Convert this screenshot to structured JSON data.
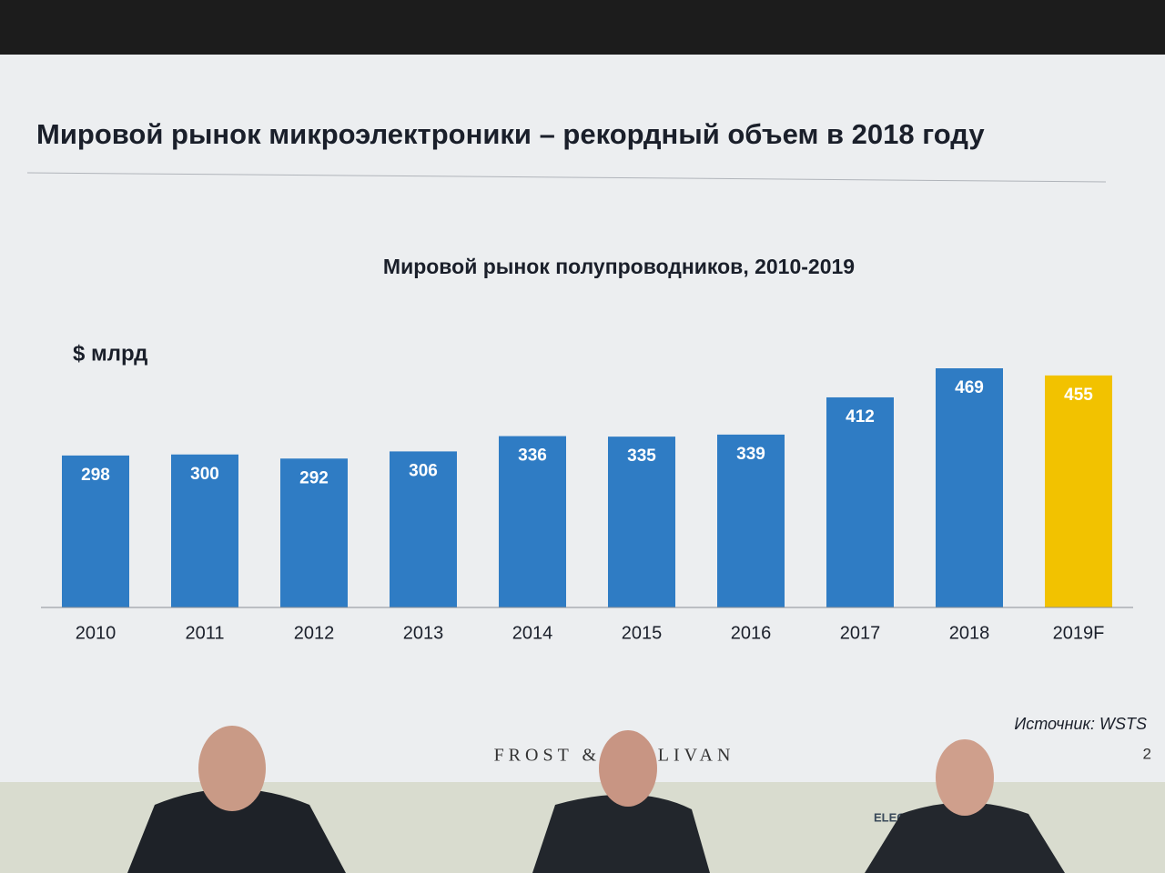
{
  "chart_data": {
    "type": "bar",
    "slide_title": "Мировой рынок микроэлектроники – рекордный объем в 2018 году",
    "title": "Мировой рынок полупроводников, 2010-2019",
    "unit_label": "$ млрд",
    "categories": [
      "2010",
      "2011",
      "2012",
      "2013",
      "2014",
      "2015",
      "2016",
      "2017",
      "2018",
      "2019F"
    ],
    "values": [
      298,
      300,
      292,
      306,
      336,
      335,
      339,
      412,
      469,
      455
    ],
    "colors": [
      "#2f7cc4",
      "#2f7cc4",
      "#2f7cc4",
      "#2f7cc4",
      "#2f7cc4",
      "#2f7cc4",
      "#2f7cc4",
      "#2f7cc4",
      "#2f7cc4",
      "#f2c200"
    ],
    "source": "Источник: WSTS",
    "logo": "FROST & SULLIVAN",
    "page_number": "2",
    "backdrop_text": "ELECTRON TECHEXPO"
  }
}
